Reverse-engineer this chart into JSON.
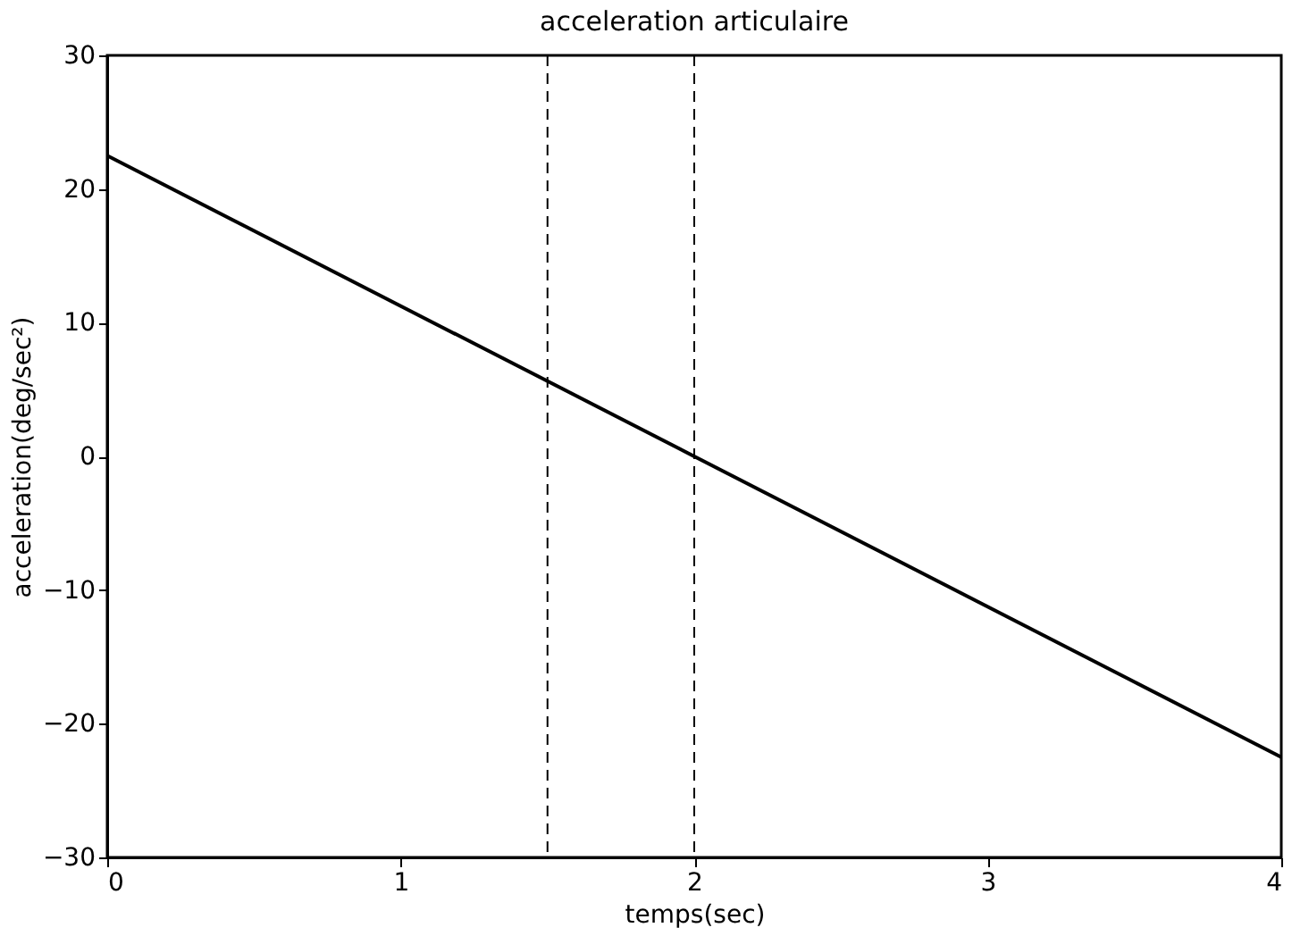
{
  "chart_data": {
    "type": "line",
    "title": "acceleration articulaire",
    "xlabel": "temps(sec)",
    "ylabel": "acceleration(deg/sec²)",
    "x": [
      0,
      4
    ],
    "series": [
      {
        "color": "#000000",
        "values": [
          22.5,
          -22.5
        ]
      }
    ],
    "xlim": [
      0,
      4
    ],
    "xticks": [
      0,
      1,
      2,
      3,
      4
    ],
    "ylim": [
      -30,
      30
    ],
    "yticks": [
      -30,
      -20,
      -10,
      0,
      10,
      20,
      30
    ],
    "ref_lines": [
      {
        "axis": "x",
        "value": 1.5,
        "color": "#000000",
        "line_style": "dashed"
      },
      {
        "axis": "x",
        "value": 2,
        "color": "#000000",
        "line_style": "dashed"
      }
    ],
    "grid": false,
    "marker": "none",
    "line_style": "solid"
  }
}
